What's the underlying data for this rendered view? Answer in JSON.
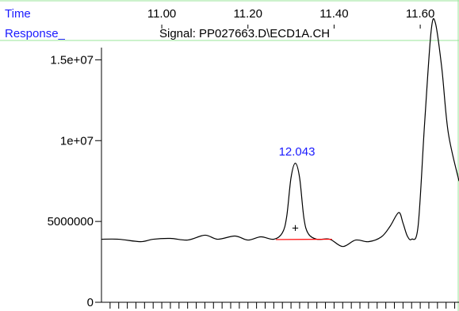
{
  "header": {
    "time_label": "Time",
    "response_label": "Response_",
    "signal_title": "Signal: PP027663.D\\ECD1A.CH"
  },
  "chart_data": {
    "type": "line",
    "title": "Signal: PP027663.D\\ECD1A.CH",
    "xlabel": "Time",
    "ylabel": "Response_",
    "x_ticks": [
      {
        "value": 11.0,
        "label": "11.00"
      },
      {
        "value": 11.2,
        "label": "11.20"
      },
      {
        "value": 11.4,
        "label": "11.40"
      },
      {
        "value": 11.6,
        "label": "11.60"
      }
    ],
    "y_ticks": [
      {
        "value": 0,
        "label": "0"
      },
      {
        "value": 5000000,
        "label": "5000000"
      },
      {
        "value": 10000000,
        "label": "1e+07"
      },
      {
        "value": 15000000,
        "label": "1.5e+07"
      }
    ],
    "xlim": [
      10.86,
      11.69
    ],
    "ylim": [
      0,
      18700000
    ],
    "series": [
      {
        "x": [
          10.86,
          10.9,
          10.95,
          10.98,
          11.02,
          11.06,
          11.1,
          11.13,
          11.17,
          11.2,
          11.23,
          11.26,
          11.28,
          11.29,
          11.3,
          11.31,
          11.32,
          11.33,
          11.34,
          11.36,
          11.39,
          11.42,
          11.45,
          11.48,
          11.51,
          11.53,
          11.55,
          11.56,
          11.57,
          11.58,
          11.595,
          11.61,
          11.625,
          11.635,
          11.65,
          11.665,
          11.69
        ],
        "y": [
          3900000,
          3900000,
          3750000,
          3900000,
          3950000,
          3850000,
          4150000,
          3900000,
          4100000,
          3850000,
          4050000,
          3900000,
          4300000,
          5300000,
          7700000,
          8600000,
          7700000,
          5200000,
          4250000,
          3900000,
          3900000,
          3450000,
          3850000,
          3750000,
          4050000,
          4700000,
          5550000,
          4900000,
          4100000,
          3900000,
          4700000,
          11000000,
          16700000,
          17300000,
          14500000,
          10500000,
          7500000
        ]
      }
    ],
    "baseline": {
      "x": [
        11.265,
        11.395
      ],
      "y": [
        3880000,
        3900000
      ],
      "color": "#ff0000"
    },
    "peak_annotation": {
      "x": 11.31,
      "y": 8600000,
      "label": "12.043",
      "color": "#1a1aff"
    },
    "peak_marker": {
      "x": 11.31,
      "y": 4600000,
      "symbol": "+"
    },
    "colors": {
      "label": "#1a1aff",
      "trace": "#000000",
      "baseline": "#ff0000",
      "frame": "#99e699"
    }
  }
}
